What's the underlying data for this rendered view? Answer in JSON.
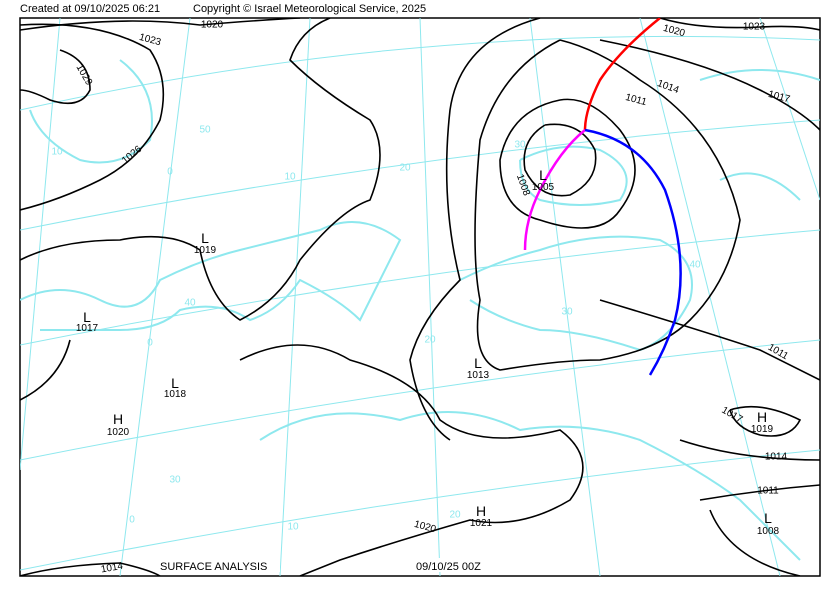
{
  "header": {
    "created": "Created at 09/10/2025 06:21",
    "copyright": "Copyright © Israel Meteorological Service, 2025"
  },
  "footer": {
    "title": "SURFACE ANALYSIS",
    "valid": "09/10/25 00Z"
  },
  "isobar_labels": [
    "1020",
    "1023",
    "1029",
    "1026",
    "1020",
    "1023",
    "1014",
    "1017",
    "1011",
    "1008",
    "1011",
    "1017",
    "1014",
    "1011",
    "1020",
    "1014"
  ],
  "centers": [
    {
      "type": "L",
      "value": "1005"
    },
    {
      "type": "L",
      "value": "1019"
    },
    {
      "type": "L",
      "value": "1017"
    },
    {
      "type": "L",
      "value": "1018"
    },
    {
      "type": "H",
      "value": "1020"
    },
    {
      "type": "L",
      "value": "1013"
    },
    {
      "type": "H",
      "value": "1019"
    },
    {
      "type": "H",
      "value": "1021"
    },
    {
      "type": "L",
      "value": "1008"
    }
  ],
  "grid_labels": [
    "50",
    "10",
    "0",
    "10",
    "20",
    "30",
    "40",
    "40",
    "0",
    "30",
    "20",
    "30",
    "0",
    "10",
    "20"
  ]
}
